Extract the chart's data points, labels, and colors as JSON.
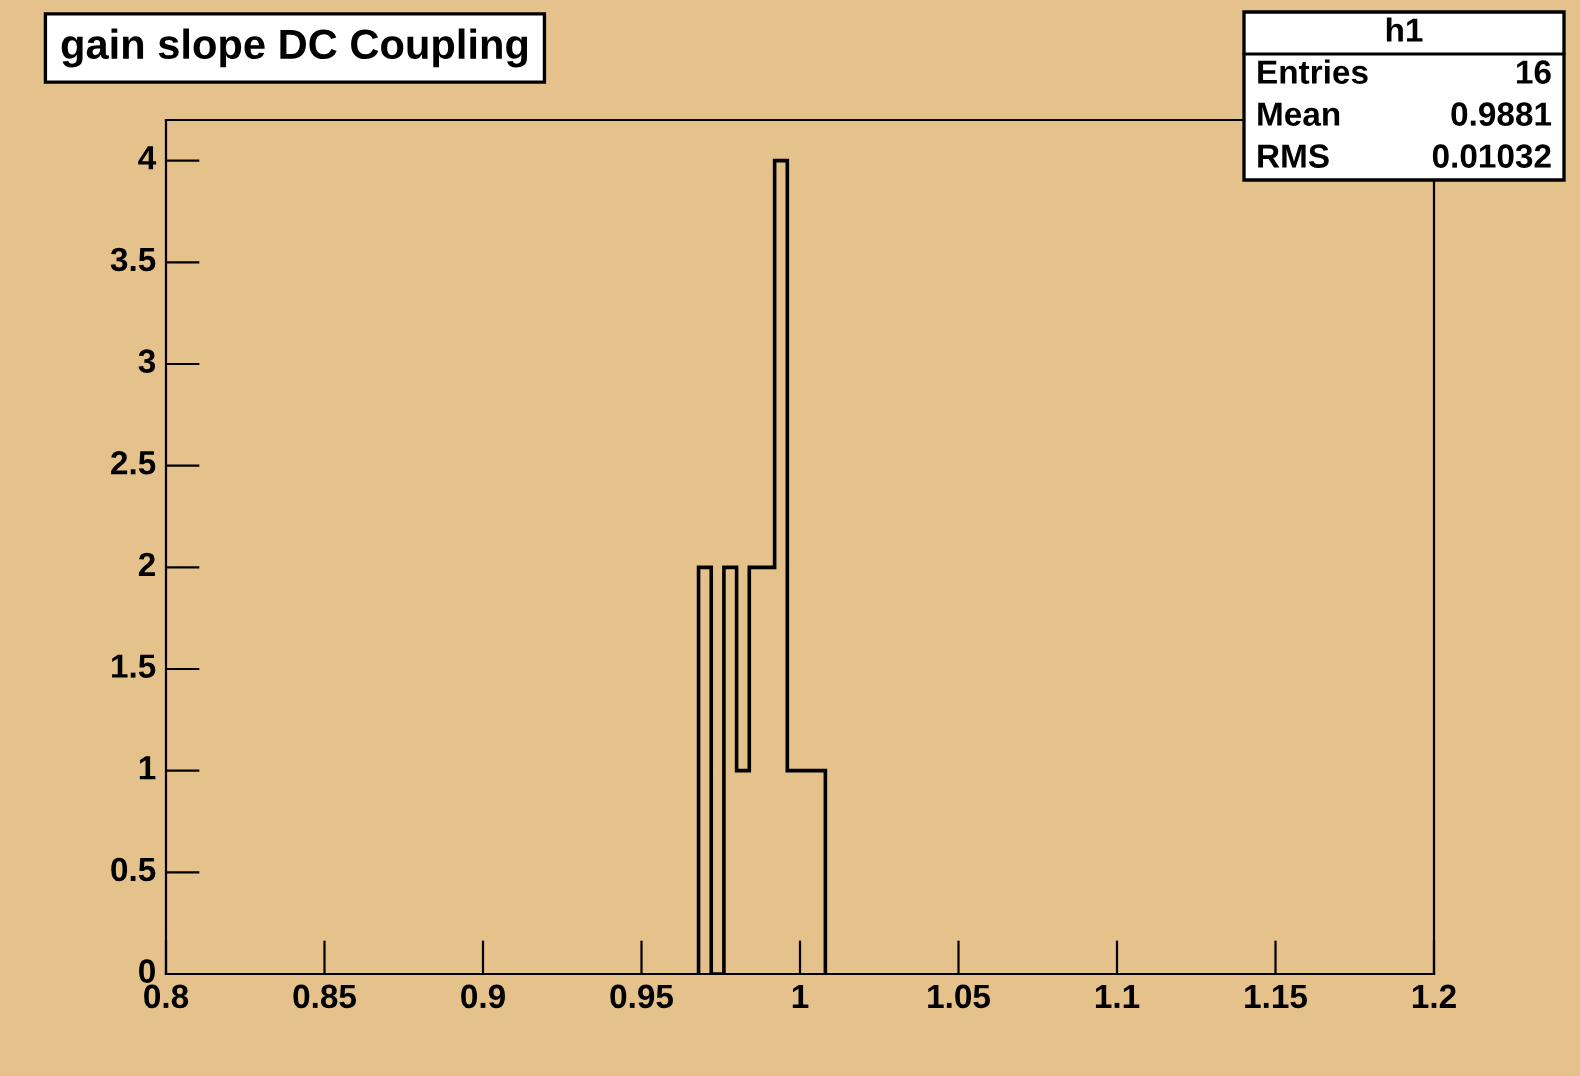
{
  "chart_data": {
    "type": "histogram",
    "title": "gain slope DC Coupling",
    "bins": [
      0.968,
      0.972,
      0.976,
      0.98,
      0.984,
      0.988,
      0.992,
      0.996,
      1.0,
      1.004,
      1.008
    ],
    "values": [
      2,
      0,
      2,
      1,
      2,
      2,
      4,
      1,
      1,
      1
    ],
    "color": "#000000",
    "xlim": [
      0.8,
      1.2
    ],
    "xticks": [
      0.8,
      0.85,
      0.9,
      0.95,
      1,
      1.05,
      1.1,
      1.15,
      1.2
    ],
    "ylim": [
      0,
      4.2
    ],
    "yticks": [
      0,
      0.5,
      1,
      1.5,
      2,
      2.5,
      3,
      3.5,
      4
    ],
    "grid": false,
    "annotations": [
      "h1",
      "Entries",
      "16",
      "Mean",
      "0.9881",
      "RMS",
      "0.01032"
    ]
  }
}
